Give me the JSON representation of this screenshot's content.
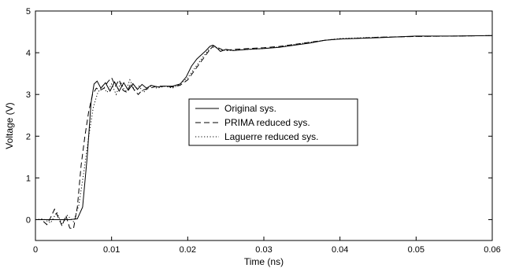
{
  "chart_data": {
    "type": "line",
    "xlabel": "Time (ns)",
    "ylabel": "Voltage (V)",
    "xlim": [
      0,
      0.06
    ],
    "ylim": [
      -0.5,
      5
    ],
    "xticks": [
      0,
      0.01,
      0.02,
      0.03,
      0.04,
      0.05,
      0.06
    ],
    "xtick_labels": [
      "0",
      "0.01",
      "0.02",
      "0.03",
      "0.04",
      "0.05",
      "0.06"
    ],
    "yticks": [
      0,
      1,
      2,
      3,
      4,
      5
    ],
    "ytick_labels": [
      "0",
      "1",
      "2",
      "3",
      "4",
      "5"
    ],
    "grid": false,
    "legend_position": "center",
    "series": [
      {
        "name": "Original sys.",
        "style": "solid",
        "color": "#000000",
        "x": [
          0,
          0.0045,
          0.0055,
          0.0062,
          0.0068,
          0.0073,
          0.0077,
          0.0081,
          0.0086,
          0.0092,
          0.0098,
          0.0104,
          0.011,
          0.0116,
          0.0122,
          0.0128,
          0.0134,
          0.014,
          0.0146,
          0.0152,
          0.016,
          0.017,
          0.018,
          0.019,
          0.0198,
          0.0205,
          0.0212,
          0.0218,
          0.0224,
          0.0229,
          0.0233,
          0.0238,
          0.0243,
          0.025,
          0.026,
          0.028,
          0.03,
          0.032,
          0.034,
          0.036,
          0.038,
          0.04,
          0.045,
          0.05,
          0.055,
          0.06
        ],
        "y": [
          0,
          0,
          0.02,
          0.3,
          1.5,
          2.8,
          3.25,
          3.32,
          3.15,
          3.28,
          3.08,
          3.3,
          3.08,
          3.28,
          3.1,
          3.26,
          3.12,
          3.24,
          3.15,
          3.22,
          3.18,
          3.2,
          3.2,
          3.25,
          3.42,
          3.68,
          3.85,
          3.95,
          4.05,
          4.15,
          4.18,
          4.12,
          4.03,
          4.08,
          4.05,
          4.08,
          4.1,
          4.13,
          4.18,
          4.23,
          4.3,
          4.33,
          4.36,
          4.4,
          4.4,
          4.41
        ]
      },
      {
        "name": "PRIMA reduced sys.",
        "style": "dashed",
        "color": "#000000",
        "x": [
          0,
          0.0008,
          0.0015,
          0.002,
          0.0025,
          0.003,
          0.0035,
          0.004,
          0.0045,
          0.005,
          0.0055,
          0.006,
          0.0065,
          0.007,
          0.0075,
          0.008,
          0.0085,
          0.009,
          0.0095,
          0.01,
          0.0105,
          0.011,
          0.0115,
          0.012,
          0.0125,
          0.013,
          0.0135,
          0.014,
          0.015,
          0.016,
          0.017,
          0.018,
          0.019,
          0.02,
          0.021,
          0.022,
          0.0228,
          0.0234,
          0.024,
          0.0248,
          0.026,
          0.028,
          0.03,
          0.032,
          0.034,
          0.036,
          0.038,
          0.04,
          0.045,
          0.05,
          0.055,
          0.06
        ],
        "y": [
          0,
          0,
          -0.12,
          0.05,
          0.25,
          0.05,
          -0.15,
          0.1,
          -0.2,
          -0.22,
          0.3,
          1.3,
          2.0,
          2.6,
          3.0,
          3.15,
          3.1,
          3.15,
          3.3,
          3.4,
          3.2,
          3.35,
          3.1,
          3.05,
          3.25,
          3.1,
          3.0,
          3.1,
          3.15,
          3.2,
          3.2,
          3.18,
          3.22,
          3.35,
          3.6,
          3.85,
          4.05,
          4.17,
          4.12,
          4.05,
          4.08,
          4.1,
          4.12,
          4.15,
          4.2,
          4.25,
          4.3,
          4.33,
          4.37,
          4.39,
          4.4,
          4.41
        ]
      },
      {
        "name": "Laguerre reduced sys.",
        "style": "dotted",
        "color": "#000000",
        "x": [
          0,
          0.001,
          0.002,
          0.0028,
          0.0035,
          0.0042,
          0.005,
          0.0057,
          0.0064,
          0.007,
          0.0076,
          0.0082,
          0.0088,
          0.0094,
          0.01,
          0.0106,
          0.0112,
          0.0118,
          0.0124,
          0.013,
          0.0136,
          0.0142,
          0.015,
          0.016,
          0.017,
          0.018,
          0.019,
          0.02,
          0.021,
          0.022,
          0.0228,
          0.0235,
          0.0242,
          0.025,
          0.026,
          0.028,
          0.03,
          0.032,
          0.034,
          0.036,
          0.038,
          0.04,
          0.045,
          0.05,
          0.055,
          0.06
        ],
        "y": [
          0,
          0.02,
          -0.08,
          0.18,
          -0.12,
          0.1,
          -0.05,
          0.35,
          1.2,
          2.0,
          2.7,
          3.05,
          3.2,
          3.05,
          3.25,
          3.0,
          3.3,
          3.05,
          3.35,
          3.1,
          3.2,
          3.05,
          3.2,
          3.15,
          3.2,
          3.15,
          3.25,
          3.4,
          3.65,
          3.9,
          4.08,
          4.14,
          4.08,
          4.05,
          4.06,
          4.08,
          4.1,
          4.14,
          4.2,
          4.25,
          4.3,
          4.34,
          4.37,
          4.39,
          4.4,
          4.41
        ]
      }
    ]
  }
}
